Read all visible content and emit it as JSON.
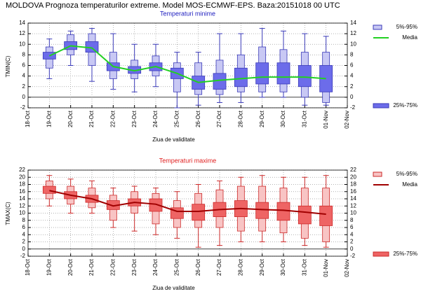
{
  "title": "MOLDOVA  Prognoza temperaturilor extreme.  Model MOS-ECMWF-EPS. Baza:20151018 00 UTC",
  "chart_data": [
    {
      "type": "box",
      "title": "Temperaturi minime",
      "title_color": "#2020c0",
      "y_label": "TMIN(C)",
      "x_label": "Ziua de validitate",
      "categories": [
        "18-Oct",
        "19-Oct",
        "20-Oct",
        "21-Oct",
        "22-Oct",
        "23-Oct",
        "24-Oct",
        "25-Oct",
        "26-Oct",
        "27-Oct",
        "28-Oct",
        "29-Oct",
        "30-Oct",
        "31-Oct",
        "01-Nov",
        "02-Nov"
      ],
      "min": [
        null,
        3.5,
        6,
        3,
        1.5,
        1,
        2,
        -2,
        -1.5,
        -1,
        -1,
        0,
        0,
        -1.5,
        -1.5,
        null
      ],
      "p5": [
        null,
        5.5,
        8,
        6,
        3.5,
        3.5,
        4,
        1,
        0.5,
        0.5,
        1,
        1,
        1,
        0,
        -1,
        null
      ],
      "p25": [
        null,
        7.2,
        9,
        8.5,
        5,
        4.5,
        5,
        3.5,
        1.5,
        1.5,
        2,
        2.5,
        2.5,
        2,
        1,
        null
      ],
      "p75": [
        null,
        8.5,
        10.5,
        10.5,
        6.5,
        5.8,
        6.5,
        5.5,
        4,
        4.5,
        5.5,
        6.5,
        6.5,
        6,
        6,
        null
      ],
      "p95": [
        null,
        9.5,
        11.8,
        12,
        8.5,
        7,
        7.8,
        6.5,
        6.5,
        7,
        8,
        9.5,
        9,
        8.5,
        8.5,
        null
      ],
      "max": [
        null,
        11,
        12.5,
        13,
        12,
        10,
        10,
        8.5,
        8.5,
        12,
        12,
        13,
        12.5,
        12,
        11.5,
        null
      ],
      "media": [
        null,
        7.8,
        9.7,
        9.3,
        5.8,
        5,
        5.8,
        4.5,
        2.8,
        3.2,
        3.5,
        3.8,
        3.8,
        3.8,
        3.5,
        null
      ],
      "legend": {
        "outer": "5%-95%",
        "mean": "Media",
        "inner": "25%-75%"
      },
      "colors": {
        "outer": "#c8c8f4",
        "inner": "#6c6cea",
        "edge": "#3a3ab8",
        "mean": "#22d022"
      },
      "ylim": [
        -2,
        14
      ],
      "yticks": [
        -2,
        0,
        2,
        4,
        6,
        8,
        10,
        12,
        14
      ],
      "grid": true
    },
    {
      "type": "box",
      "title": "Temperaturi maxime",
      "title_color": "#e02020",
      "y_label": "TMAX(C)",
      "x_label": "Ziua de validitate",
      "categories": [
        "18-Oct",
        "19-Oct",
        "20-Oct",
        "21-Oct",
        "22-Oct",
        "23-Oct",
        "24-Oct",
        "25-Oct",
        "26-Oct",
        "27-Oct",
        "28-Oct",
        "29-Oct",
        "30-Oct",
        "31-Oct",
        "01-Nov",
        "02-Nov"
      ],
      "min": [
        null,
        12,
        10,
        10,
        6,
        5,
        4,
        3,
        0.5,
        1,
        2,
        2,
        2,
        1,
        0.5,
        null
      ],
      "p5": [
        null,
        14,
        12.5,
        11.5,
        8,
        10,
        7,
        6,
        6,
        6,
        5,
        5,
        4.5,
        3,
        2,
        null
      ],
      "p25": [
        null,
        15.5,
        14,
        13,
        11,
        12,
        10.5,
        8.5,
        8,
        9,
        9,
        8.5,
        8,
        7,
        6.5,
        null
      ],
      "p75": [
        null,
        17.5,
        16,
        15,
        13.5,
        14,
        14,
        11.5,
        12.5,
        13,
        13.5,
        13,
        13,
        12,
        12,
        null
      ],
      "p95": [
        null,
        19,
        17.5,
        17,
        15,
        16,
        15.5,
        13.5,
        15.5,
        16.5,
        17.5,
        17.5,
        17,
        17,
        17,
        null
      ],
      "max": [
        null,
        20.5,
        19.5,
        19,
        17,
        17.5,
        17,
        16,
        18,
        19,
        20,
        20.5,
        20,
        20,
        20.5,
        null
      ],
      "media": [
        null,
        16.3,
        15,
        14,
        12,
        13,
        12.5,
        10.5,
        10.5,
        11,
        11.3,
        11,
        10.8,
        10.3,
        9.7,
        null
      ],
      "legend": {
        "outer": "5%-95%",
        "mean": "Media",
        "inner": "25%-75%"
      },
      "colors": {
        "outer": "#f8c4c4",
        "inner": "#ee6464",
        "edge": "#cc2a2a",
        "mean": "#a00000"
      },
      "ylim": [
        -2,
        22
      ],
      "yticks": [
        -2,
        0,
        2,
        4,
        6,
        8,
        10,
        12,
        14,
        16,
        18,
        20,
        22
      ],
      "grid": true
    }
  ]
}
